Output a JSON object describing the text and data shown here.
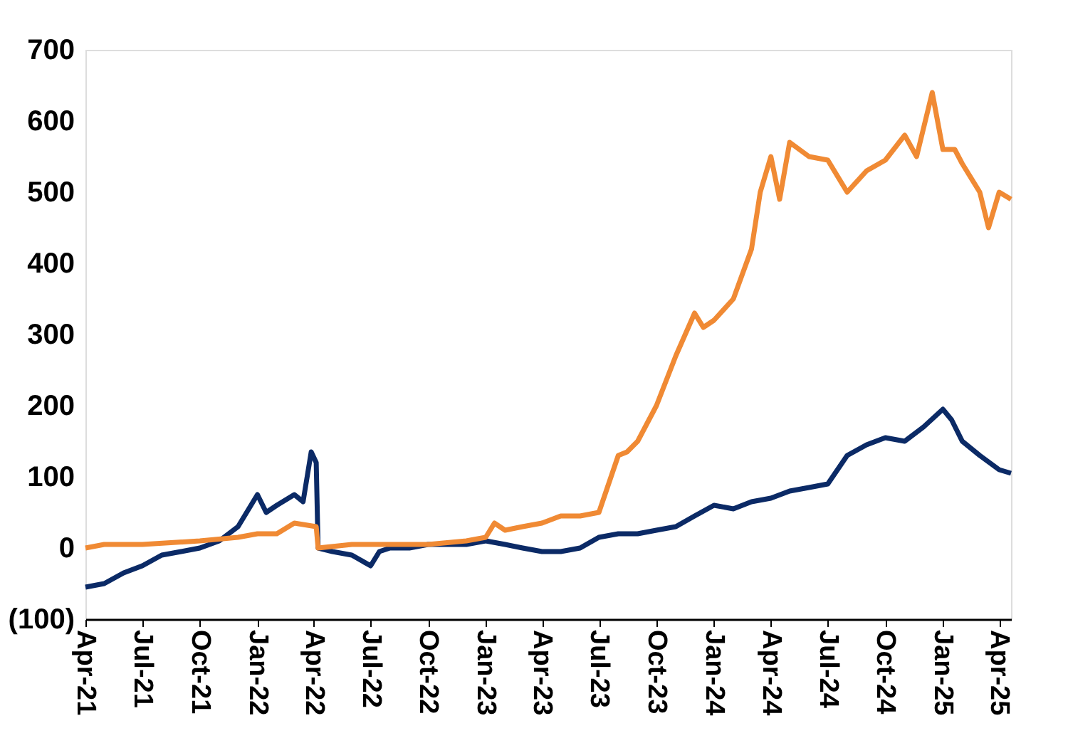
{
  "chart_data": {
    "type": "line",
    "xlim": [
      "2021-04-01",
      "2025-04-20"
    ],
    "xticks": [
      {
        "value": "2021-04-01",
        "label": "Apr-21"
      },
      {
        "value": "2021-07-01",
        "label": "Jul-21"
      },
      {
        "value": "2021-10-01",
        "label": "Oct-21"
      },
      {
        "value": "2022-01-01",
        "label": "Jan-22"
      },
      {
        "value": "2022-04-01",
        "label": "Apr-22"
      },
      {
        "value": "2022-07-01",
        "label": "Jul-22"
      },
      {
        "value": "2022-10-01",
        "label": "Oct-22"
      },
      {
        "value": "2023-01-01",
        "label": "Jan-23"
      },
      {
        "value": "2023-04-01",
        "label": "Apr-23"
      },
      {
        "value": "2023-07-01",
        "label": "Jul-23"
      },
      {
        "value": "2023-10-01",
        "label": "Oct-23"
      },
      {
        "value": "2024-01-01",
        "label": "Jan-24"
      },
      {
        "value": "2024-04-01",
        "label": "Apr-24"
      },
      {
        "value": "2024-07-01",
        "label": "Jul-24"
      },
      {
        "value": "2024-10-01",
        "label": "Oct-24"
      },
      {
        "value": "2025-01-01",
        "label": "Jan-25"
      },
      {
        "value": "2025-04-01",
        "label": "Apr-25"
      }
    ],
    "ylim": [
      -100,
      700
    ],
    "yticks": [
      {
        "value": -100,
        "label": "(100)"
      },
      0,
      100,
      200,
      300,
      400,
      500,
      600,
      700
    ],
    "grid": false,
    "legend": false,
    "line_style": "solid",
    "marker": "none",
    "series": [
      {
        "color": "#0b2a66",
        "x": [
          "2021-04-01",
          "2021-05-01",
          "2021-06-01",
          "2021-07-01",
          "2021-08-01",
          "2021-09-01",
          "2021-10-01",
          "2021-11-01",
          "2021-12-01",
          "2022-01-01",
          "2022-01-15",
          "2022-02-01",
          "2022-03-01",
          "2022-03-15",
          "2022-03-28",
          "2022-04-05",
          "2022-04-08",
          "2022-05-01",
          "2022-06-01",
          "2022-07-01",
          "2022-07-15",
          "2022-08-01",
          "2022-09-01",
          "2022-10-01",
          "2022-11-01",
          "2022-12-01",
          "2023-01-01",
          "2023-02-01",
          "2023-03-01",
          "2023-04-01",
          "2023-05-01",
          "2023-06-01",
          "2023-07-01",
          "2023-08-01",
          "2023-09-01",
          "2023-10-01",
          "2023-11-01",
          "2023-12-01",
          "2024-01-01",
          "2024-02-01",
          "2024-03-01",
          "2024-04-01",
          "2024-05-01",
          "2024-06-01",
          "2024-07-01",
          "2024-08-01",
          "2024-09-01",
          "2024-10-01",
          "2024-11-01",
          "2024-12-01",
          "2025-01-01",
          "2025-01-15",
          "2025-02-01",
          "2025-03-01",
          "2025-04-01",
          "2025-04-20"
        ],
        "values": [
          -55,
          -50,
          -35,
          -25,
          -10,
          -5,
          0,
          10,
          30,
          75,
          50,
          60,
          75,
          65,
          135,
          120,
          0,
          -5,
          -10,
          -25,
          -5,
          0,
          0,
          5,
          5,
          5,
          10,
          5,
          0,
          -5,
          -5,
          0,
          15,
          20,
          20,
          25,
          30,
          45,
          60,
          55,
          65,
          70,
          80,
          85,
          90,
          130,
          145,
          155,
          150,
          170,
          195,
          180,
          150,
          130,
          110,
          105
        ]
      },
      {
        "color": "#f08a34",
        "x": [
          "2021-04-01",
          "2021-05-01",
          "2021-07-01",
          "2021-10-01",
          "2021-12-01",
          "2022-01-01",
          "2022-02-01",
          "2022-03-01",
          "2022-04-05",
          "2022-04-08",
          "2022-06-01",
          "2022-08-01",
          "2022-10-01",
          "2022-12-01",
          "2023-01-01",
          "2023-01-15",
          "2023-02-01",
          "2023-03-01",
          "2023-04-01",
          "2023-05-01",
          "2023-06-01",
          "2023-07-01",
          "2023-08-01",
          "2023-08-15",
          "2023-09-01",
          "2023-10-01",
          "2023-11-01",
          "2023-12-01",
          "2023-12-15",
          "2024-01-01",
          "2024-02-01",
          "2024-03-01",
          "2024-03-15",
          "2024-04-01",
          "2024-04-15",
          "2024-05-01",
          "2024-06-01",
          "2024-07-01",
          "2024-08-01",
          "2024-09-01",
          "2024-10-01",
          "2024-11-01",
          "2024-11-20",
          "2024-12-15",
          "2025-01-01",
          "2025-01-20",
          "2025-02-01",
          "2025-03-01",
          "2025-03-15",
          "2025-04-01",
          "2025-04-20"
        ],
        "values": [
          0,
          5,
          5,
          10,
          15,
          20,
          20,
          35,
          30,
          0,
          5,
          5,
          5,
          10,
          15,
          35,
          25,
          30,
          35,
          45,
          45,
          50,
          130,
          135,
          150,
          200,
          270,
          330,
          310,
          320,
          350,
          420,
          500,
          550,
          490,
          570,
          550,
          545,
          500,
          530,
          545,
          580,
          550,
          640,
          560,
          560,
          540,
          500,
          450,
          500,
          490
        ]
      }
    ]
  }
}
